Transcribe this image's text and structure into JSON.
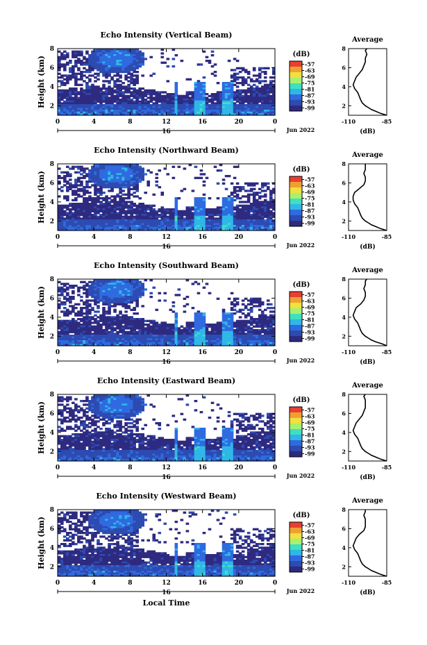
{
  "figure": {
    "xlabel": "Local Time",
    "date_label": "Jun 2022",
    "xaxis_day": "16",
    "ylabel": "Height (km)",
    "colorbar_unit": "(dB)",
    "avg_title": "Average",
    "avg_xlabel": "(dB)"
  },
  "chart_data": [
    {
      "type": "heatmap",
      "title": "Echo Intensity (Vertical Beam)",
      "xticks": [
        "0",
        "4",
        "8",
        "12",
        "16",
        "20",
        "0"
      ],
      "xlim": [
        0,
        24
      ],
      "yticks": [
        "2",
        "4",
        "6",
        "8"
      ],
      "ylim": [
        1,
        8
      ],
      "colorbar_ticks": [
        "-57",
        "-63",
        "-69",
        "-75",
        "-81",
        "-87",
        "-93",
        "-99"
      ],
      "colorbar_range": [
        -102,
        -54
      ],
      "colorscale": [
        "#2e2a80",
        "#2d4bb0",
        "#2f6ae0",
        "#2fb7e8",
        "#3fe0c0",
        "#a8f070",
        "#f0e040",
        "#f0a030",
        "#e84030"
      ],
      "average_profile": {
        "title": "Average",
        "xlim": [
          -110,
          -85
        ],
        "xticks": [
          "-110",
          "-85"
        ],
        "heights": [
          1.0,
          1.2,
          1.4,
          1.6,
          1.8,
          2.0,
          2.3,
          2.6,
          3.0,
          3.4,
          3.8,
          4.2,
          4.6,
          5.0,
          5.4,
          5.8,
          6.2,
          6.6,
          7.0,
          7.4,
          7.8,
          8.0
        ],
        "values": [
          -85,
          -89,
          -92,
          -95,
          -97,
          -99,
          -101,
          -102,
          -103,
          -104,
          -106,
          -107,
          -106,
          -105,
          -103,
          -101,
          -100,
          -99,
          -99,
          -98,
          -99,
          -98
        ]
      }
    },
    {
      "type": "heatmap",
      "title": "Echo Intensity (Northward Beam)",
      "xticks": [
        "0",
        "4",
        "8",
        "12",
        "16",
        "20",
        "0"
      ],
      "xlim": [
        0,
        24
      ],
      "yticks": [
        "2",
        "4",
        "6",
        "8"
      ],
      "ylim": [
        1,
        8
      ],
      "colorbar_ticks": [
        "-57",
        "-63",
        "-69",
        "-75",
        "-81",
        "-87",
        "-93",
        "-99"
      ],
      "colorbar_range": [
        -102,
        -54
      ],
      "colorscale": [
        "#2e2a80",
        "#2d4bb0",
        "#2f6ae0",
        "#2fb7e8",
        "#3fe0c0",
        "#a8f070",
        "#f0e040",
        "#f0a030",
        "#e84030"
      ],
      "average_profile": {
        "title": "Average",
        "xlim": [
          -110,
          -85
        ],
        "xticks": [
          "-110",
          "-85"
        ],
        "heights": [
          1.0,
          1.2,
          1.4,
          1.6,
          1.8,
          2.0,
          2.3,
          2.6,
          3.0,
          3.4,
          3.8,
          4.2,
          4.6,
          5.0,
          5.4,
          5.8,
          6.2,
          6.6,
          7.0,
          7.4,
          7.8,
          8.0
        ],
        "values": [
          -85,
          -89,
          -92,
          -95,
          -97,
          -99,
          -101,
          -102,
          -103,
          -104,
          -106,
          -107,
          -107,
          -106,
          -103,
          -100,
          -99,
          -99,
          -100,
          -99,
          -99,
          -99
        ]
      }
    },
    {
      "type": "heatmap",
      "title": "Echo Intensity (Southward Beam)",
      "xticks": [
        "0",
        "4",
        "8",
        "12",
        "16",
        "20",
        "0"
      ],
      "xlim": [
        0,
        24
      ],
      "yticks": [
        "2",
        "4",
        "6",
        "8"
      ],
      "ylim": [
        1,
        8
      ],
      "colorbar_ticks": [
        "-57",
        "-63",
        "-69",
        "-75",
        "-81",
        "-87",
        "-93",
        "-99"
      ],
      "colorbar_range": [
        -102,
        -54
      ],
      "colorscale": [
        "#2e2a80",
        "#2d4bb0",
        "#2f6ae0",
        "#2fb7e8",
        "#3fe0c0",
        "#a8f070",
        "#f0e040",
        "#f0a030",
        "#e84030"
      ],
      "average_profile": {
        "title": "Average",
        "xlim": [
          -110,
          -85
        ],
        "xticks": [
          "-110",
          "-85"
        ],
        "heights": [
          1.0,
          1.2,
          1.4,
          1.6,
          1.8,
          2.0,
          2.3,
          2.6,
          3.0,
          3.4,
          3.8,
          4.2,
          4.6,
          5.0,
          5.4,
          5.8,
          6.2,
          6.6,
          7.0,
          7.4,
          7.8,
          8.0
        ],
        "values": [
          -85,
          -88,
          -92,
          -95,
          -97,
          -99,
          -101,
          -102,
          -103,
          -104,
          -106,
          -107,
          -106,
          -105,
          -102,
          -100,
          -99,
          -99,
          -100,
          -99,
          -99,
          -98
        ]
      }
    },
    {
      "type": "heatmap",
      "title": "Echo Intensity (Eastward Beam)",
      "xticks": [
        "0",
        "4",
        "8",
        "12",
        "16",
        "20",
        "0"
      ],
      "xlim": [
        0,
        24
      ],
      "yticks": [
        "2",
        "4",
        "6",
        "8"
      ],
      "ylim": [
        1,
        8
      ],
      "colorbar_ticks": [
        "-57",
        "-63",
        "-69",
        "-75",
        "-81",
        "-87",
        "-93",
        "-99"
      ],
      "colorbar_range": [
        -102,
        -54
      ],
      "colorscale": [
        "#2e2a80",
        "#2d4bb0",
        "#2f6ae0",
        "#2fb7e8",
        "#3fe0c0",
        "#a8f070",
        "#f0e040",
        "#f0a030",
        "#e84030"
      ],
      "average_profile": {
        "title": "Average",
        "xlim": [
          -110,
          -85
        ],
        "xticks": [
          "-110",
          "-85"
        ],
        "heights": [
          1.0,
          1.2,
          1.4,
          1.6,
          1.8,
          2.0,
          2.3,
          2.6,
          3.0,
          3.4,
          3.8,
          4.2,
          4.6,
          5.0,
          5.4,
          5.8,
          6.2,
          6.6,
          7.0,
          7.4,
          7.8,
          8.0
        ],
        "values": [
          -85,
          -89,
          -92,
          -95,
          -97,
          -99,
          -101,
          -102,
          -103,
          -104,
          -106,
          -107,
          -106,
          -105,
          -103,
          -101,
          -100,
          -99,
          -99,
          -99,
          -100,
          -99
        ]
      }
    },
    {
      "type": "heatmap",
      "title": "Echo Intensity (Westward Beam)",
      "xticks": [
        "0",
        "4",
        "8",
        "12",
        "16",
        "20",
        "0"
      ],
      "xlim": [
        0,
        24
      ],
      "yticks": [
        "2",
        "4",
        "6",
        "8"
      ],
      "ylim": [
        1,
        8
      ],
      "colorbar_ticks": [
        "-57",
        "-63",
        "-69",
        "-75",
        "-81",
        "-87",
        "-93",
        "-99"
      ],
      "colorbar_range": [
        -102,
        -54
      ],
      "colorscale": [
        "#2e2a80",
        "#2d4bb0",
        "#2f6ae0",
        "#2fb7e8",
        "#3fe0c0",
        "#a8f070",
        "#f0e040",
        "#f0a030",
        "#e84030"
      ],
      "average_profile": {
        "title": "Average",
        "xlim": [
          -110,
          -85
        ],
        "xticks": [
          "-110",
          "-85"
        ],
        "heights": [
          1.0,
          1.2,
          1.4,
          1.6,
          1.8,
          2.0,
          2.3,
          2.6,
          3.0,
          3.4,
          3.8,
          4.2,
          4.6,
          5.0,
          5.4,
          5.8,
          6.2,
          6.6,
          7.0,
          7.4,
          7.8,
          8.0
        ],
        "values": [
          -85,
          -89,
          -92,
          -95,
          -97,
          -99,
          -101,
          -102,
          -103,
          -104,
          -106,
          -107,
          -106,
          -105,
          -103,
          -100,
          -99,
          -99,
          -99,
          -100,
          -99,
          -99
        ]
      }
    }
  ]
}
